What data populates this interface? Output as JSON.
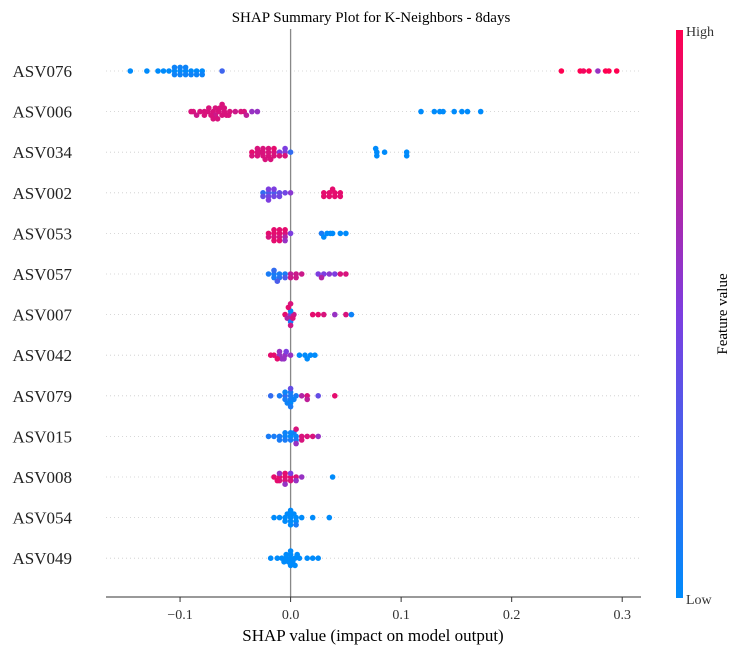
{
  "chart_data": {
    "type": "scatter",
    "title": "SHAP Summary Plot for K-Neighbors - 8days",
    "xlabel": "SHAP value (impact on model output)",
    "xlim": [
      -0.167,
      0.317
    ],
    "xticks": [
      -0.1,
      0.0,
      0.1,
      0.2,
      0.3
    ],
    "xtick_labels": [
      "−0.1",
      "0.0",
      "0.1",
      "0.2",
      "0.3"
    ],
    "colorbar": {
      "title": "Feature value",
      "high_label": "High",
      "low_label": "Low",
      "low_color": "#008bfb",
      "high_color": "#ff0051"
    },
    "features": [
      {
        "name": "ASV076",
        "points": [
          [
            -0.145,
            0.0
          ],
          [
            -0.13,
            0.0
          ],
          [
            -0.12,
            0.0
          ],
          [
            -0.115,
            0.0
          ],
          [
            -0.11,
            0.0
          ],
          [
            -0.105,
            0.0
          ],
          [
            -0.1,
            0.0
          ],
          [
            -0.095,
            0.0
          ],
          [
            -0.09,
            0.0
          ],
          [
            -0.085,
            0.0
          ],
          [
            -0.08,
            0.0
          ],
          [
            -0.062,
            0.25
          ],
          [
            -0.105,
            0.05
          ],
          [
            -0.1,
            0.05
          ],
          [
            -0.095,
            0.05
          ],
          [
            -0.09,
            0.05
          ],
          [
            -0.085,
            0.05
          ],
          [
            -0.08,
            0.05
          ],
          [
            -0.1,
            0.05
          ],
          [
            -0.095,
            0.05
          ],
          [
            -0.105,
            0.05
          ],
          [
            0.245,
            1.0
          ],
          [
            0.262,
            1.0
          ],
          [
            0.265,
            0.95
          ],
          [
            0.27,
            1.0
          ],
          [
            0.278,
            0.6
          ],
          [
            0.285,
            1.0
          ],
          [
            0.288,
            1.0
          ],
          [
            0.295,
            1.0
          ]
        ]
      },
      {
        "name": "ASV006",
        "points": [
          [
            -0.09,
            0.85
          ],
          [
            -0.088,
            0.85
          ],
          [
            -0.085,
            0.8
          ],
          [
            -0.082,
            0.85
          ],
          [
            -0.078,
            0.85
          ],
          [
            -0.075,
            0.85
          ],
          [
            -0.07,
            0.85
          ],
          [
            -0.068,
            0.8
          ],
          [
            -0.065,
            0.85
          ],
          [
            -0.062,
            0.85
          ],
          [
            -0.06,
            0.85
          ],
          [
            -0.058,
            0.85
          ],
          [
            -0.055,
            0.85
          ],
          [
            -0.05,
            0.8
          ],
          [
            -0.045,
            0.85
          ],
          [
            -0.042,
            0.85
          ],
          [
            -0.04,
            0.75
          ],
          [
            -0.035,
            0.6
          ],
          [
            -0.03,
            0.6
          ],
          [
            -0.072,
            0.85
          ],
          [
            -0.068,
            0.85
          ],
          [
            -0.064,
            0.85
          ],
          [
            -0.06,
            0.85
          ],
          [
            -0.056,
            0.85
          ],
          [
            -0.078,
            0.85
          ],
          [
            -0.074,
            0.85
          ],
          [
            -0.07,
            0.85
          ],
          [
            -0.066,
            0.85
          ],
          [
            -0.062,
            0.85
          ],
          [
            0.118,
            0.0
          ],
          [
            0.13,
            0.0
          ],
          [
            0.138,
            0.0
          ],
          [
            0.148,
            0.0
          ],
          [
            0.16,
            0.0
          ],
          [
            0.172,
            0.0
          ],
          [
            0.135,
            0.0
          ],
          [
            0.155,
            0.0
          ]
        ]
      },
      {
        "name": "ASV034",
        "points": [
          [
            -0.035,
            0.9
          ],
          [
            -0.03,
            0.85
          ],
          [
            -0.025,
            0.85
          ],
          [
            -0.02,
            0.85
          ],
          [
            -0.015,
            0.85
          ],
          [
            -0.01,
            0.5
          ],
          [
            -0.005,
            0.55
          ],
          [
            0.0,
            0.2
          ],
          [
            -0.035,
            0.85
          ],
          [
            -0.03,
            0.85
          ],
          [
            -0.025,
            0.85
          ],
          [
            -0.02,
            0.85
          ],
          [
            -0.015,
            0.85
          ],
          [
            -0.01,
            0.85
          ],
          [
            -0.005,
            0.85
          ],
          [
            -0.03,
            0.85
          ],
          [
            -0.025,
            0.85
          ],
          [
            -0.02,
            0.85
          ],
          [
            -0.015,
            0.9
          ],
          [
            -0.005,
            0.5
          ],
          [
            -0.028,
            0.85
          ],
          [
            -0.023,
            0.85
          ],
          [
            -0.018,
            0.85
          ],
          [
            0.078,
            0.0
          ],
          [
            0.085,
            0.0
          ],
          [
            0.105,
            0.0
          ],
          [
            0.078,
            0.0
          ],
          [
            0.105,
            0.0
          ],
          [
            0.077,
            0.0
          ]
        ]
      },
      {
        "name": "ASV002",
        "points": [
          [
            -0.025,
            0.2
          ],
          [
            -0.02,
            0.3
          ],
          [
            -0.015,
            0.3
          ],
          [
            -0.01,
            0.4
          ],
          [
            -0.025,
            0.4
          ],
          [
            -0.02,
            0.45
          ],
          [
            -0.015,
            0.45
          ],
          [
            -0.01,
            0.45
          ],
          [
            -0.005,
            0.45
          ],
          [
            -0.02,
            0.5
          ],
          [
            -0.015,
            0.5
          ],
          [
            0.0,
            0.55
          ],
          [
            -0.02,
            0.5
          ],
          [
            0.03,
            0.9
          ],
          [
            0.035,
            0.9
          ],
          [
            0.04,
            0.9
          ],
          [
            0.045,
            0.9
          ],
          [
            0.03,
            0.9
          ],
          [
            0.035,
            0.9
          ],
          [
            0.04,
            0.9
          ],
          [
            0.045,
            0.9
          ],
          [
            0.038,
            0.9
          ]
        ]
      },
      {
        "name": "ASV053",
        "points": [
          [
            -0.02,
            0.9
          ],
          [
            -0.015,
            0.9
          ],
          [
            -0.01,
            0.9
          ],
          [
            -0.005,
            0.85
          ],
          [
            -0.02,
            0.85
          ],
          [
            -0.015,
            0.85
          ],
          [
            -0.01,
            0.85
          ],
          [
            -0.005,
            0.7
          ],
          [
            0.0,
            0.5
          ],
          [
            -0.015,
            0.9
          ],
          [
            -0.01,
            0.9
          ],
          [
            -0.005,
            0.9
          ],
          [
            -0.015,
            0.9
          ],
          [
            -0.01,
            0.9
          ],
          [
            -0.005,
            0.6
          ],
          [
            0.028,
            0.1
          ],
          [
            0.033,
            0.0
          ],
          [
            0.038,
            0.0
          ],
          [
            0.045,
            0.0
          ],
          [
            0.05,
            0.0
          ],
          [
            0.03,
            0.0
          ],
          [
            0.036,
            0.0
          ]
        ]
      },
      {
        "name": "ASV057",
        "points": [
          [
            -0.015,
            0.1
          ],
          [
            -0.01,
            0.1
          ],
          [
            -0.005,
            0.1
          ],
          [
            -0.02,
            0.1
          ],
          [
            -0.015,
            0.1
          ],
          [
            -0.01,
            0.15
          ],
          [
            -0.005,
            0.3
          ],
          [
            -0.015,
            0.2
          ],
          [
            -0.012,
            0.3
          ],
          [
            0.0,
            0.75
          ],
          [
            0.005,
            0.8
          ],
          [
            0.01,
            0.8
          ],
          [
            0.0,
            0.8
          ],
          [
            0.005,
            0.8
          ],
          [
            0.025,
            0.5
          ],
          [
            0.03,
            0.5
          ],
          [
            0.04,
            0.5
          ],
          [
            0.045,
            0.85
          ],
          [
            0.05,
            0.85
          ],
          [
            0.035,
            0.55
          ],
          [
            0.028,
            0.7
          ]
        ]
      },
      {
        "name": "ASV007",
        "points": [
          [
            -0.005,
            0.9
          ],
          [
            0.0,
            0.5
          ],
          [
            -0.003,
            0.7
          ],
          [
            0.0,
            0.7
          ],
          [
            0.003,
            0.8
          ],
          [
            0.0,
            0.0
          ],
          [
            0.0,
            0.1
          ],
          [
            -0.002,
            0.9
          ],
          [
            0.002,
            0.85
          ],
          [
            0.0,
            0.8
          ],
          [
            0.0,
            0.85
          ],
          [
            0.02,
            0.9
          ],
          [
            0.025,
            0.9
          ],
          [
            0.03,
            0.85
          ],
          [
            0.04,
            0.6
          ],
          [
            0.05,
            0.85
          ],
          [
            0.055,
            0.05
          ]
        ]
      },
      {
        "name": "ASV042",
        "points": [
          [
            -0.018,
            0.9
          ],
          [
            -0.015,
            0.9
          ],
          [
            -0.01,
            0.6
          ],
          [
            -0.005,
            0.6
          ],
          [
            0.0,
            0.6
          ],
          [
            -0.008,
            0.6
          ],
          [
            -0.012,
            0.9
          ],
          [
            -0.006,
            0.6
          ],
          [
            -0.004,
            0.5
          ],
          [
            -0.01,
            0.6
          ],
          [
            0.008,
            0.0
          ],
          [
            0.013,
            0.0
          ],
          [
            0.018,
            0.0
          ],
          [
            0.022,
            0.0
          ],
          [
            0.015,
            0.0
          ]
        ]
      },
      {
        "name": "ASV079",
        "points": [
          [
            -0.018,
            0.2
          ],
          [
            -0.01,
            0.1
          ],
          [
            -0.005,
            0.2
          ],
          [
            0.0,
            0.1
          ],
          [
            0.005,
            0.1
          ],
          [
            -0.005,
            0.1
          ],
          [
            0.0,
            0.1
          ],
          [
            0.0,
            0.1
          ],
          [
            -0.005,
            0.05
          ],
          [
            0.0,
            0.0
          ],
          [
            -0.003,
            0.05
          ],
          [
            0.003,
            0.05
          ],
          [
            0.0,
            0.4
          ],
          [
            0.0,
            0.1
          ],
          [
            0.01,
            0.7
          ],
          [
            0.015,
            0.85
          ],
          [
            0.015,
            0.75
          ],
          [
            0.025,
            0.4
          ],
          [
            0.04,
            0.9
          ]
        ]
      },
      {
        "name": "ASV015",
        "points": [
          [
            -0.02,
            0.1
          ],
          [
            -0.015,
            0.1
          ],
          [
            -0.01,
            0.1
          ],
          [
            -0.005,
            0.05
          ],
          [
            0.0,
            0.0
          ],
          [
            0.005,
            0.05
          ],
          [
            -0.01,
            0.1
          ],
          [
            -0.005,
            0.1
          ],
          [
            0.0,
            0.1
          ],
          [
            0.005,
            0.1
          ],
          [
            -0.005,
            0.05
          ],
          [
            0.0,
            0.05
          ],
          [
            0.003,
            0.05
          ],
          [
            0.005,
            0.6
          ],
          [
            0.01,
            0.85
          ],
          [
            0.015,
            0.85
          ],
          [
            0.02,
            0.85
          ],
          [
            0.025,
            0.6
          ],
          [
            0.005,
            0.85
          ],
          [
            0.01,
            0.85
          ]
        ]
      },
      {
        "name": "ASV008",
        "points": [
          [
            -0.015,
            0.9
          ],
          [
            -0.01,
            0.9
          ],
          [
            -0.005,
            0.9
          ],
          [
            0.0,
            0.9
          ],
          [
            0.005,
            0.85
          ],
          [
            -0.005,
            0.85
          ],
          [
            -0.01,
            0.85
          ],
          [
            0.0,
            0.85
          ],
          [
            -0.005,
            0.9
          ],
          [
            0.005,
            0.6
          ],
          [
            0.01,
            0.6
          ],
          [
            -0.01,
            0.6
          ],
          [
            -0.005,
            0.6
          ],
          [
            0.038,
            0.0
          ],
          [
            -0.012,
            0.9
          ],
          [
            0.0,
            0.5
          ]
        ]
      },
      {
        "name": "ASV054",
        "points": [
          [
            -0.015,
            0.0
          ],
          [
            -0.01,
            0.0
          ],
          [
            -0.005,
            0.0
          ],
          [
            0.0,
            0.0
          ],
          [
            0.005,
            0.0
          ],
          [
            0.01,
            0.0
          ],
          [
            -0.005,
            0.0
          ],
          [
            0.0,
            0.0
          ],
          [
            0.005,
            0.0
          ],
          [
            -0.003,
            0.0
          ],
          [
            0.0,
            0.0
          ],
          [
            0.003,
            0.0
          ],
          [
            0.0,
            0.0
          ],
          [
            0.0,
            0.0
          ],
          [
            0.005,
            0.1
          ],
          [
            0.02,
            0.0
          ],
          [
            0.035,
            0.0
          ]
        ]
      },
      {
        "name": "ASV049",
        "points": [
          [
            -0.018,
            0.0
          ],
          [
            -0.012,
            0.0
          ],
          [
            -0.008,
            0.0
          ],
          [
            -0.004,
            0.0
          ],
          [
            0.0,
            0.0
          ],
          [
            0.004,
            0.0
          ],
          [
            0.008,
            0.0
          ],
          [
            -0.006,
            0.0
          ],
          [
            -0.002,
            0.0
          ],
          [
            0.002,
            0.0
          ],
          [
            0.006,
            0.0
          ],
          [
            -0.004,
            0.0
          ],
          [
            0.0,
            0.0
          ],
          [
            0.004,
            0.0
          ],
          [
            0.0,
            0.0
          ],
          [
            0.0,
            0.0
          ],
          [
            0.015,
            0.0
          ],
          [
            0.02,
            0.0
          ],
          [
            0.025,
            0.0
          ]
        ]
      }
    ]
  }
}
